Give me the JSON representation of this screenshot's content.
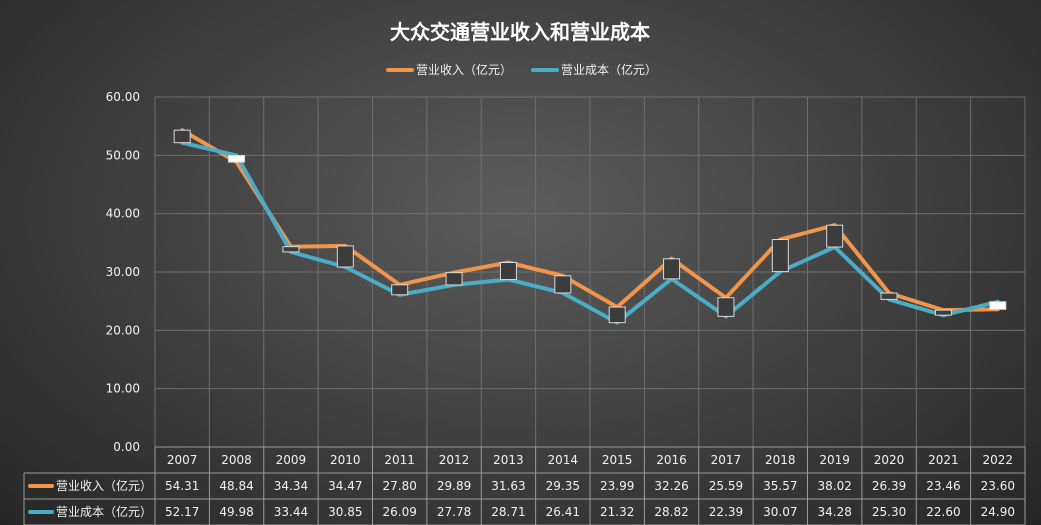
{
  "chart_data": {
    "type": "line",
    "title": "大众交通营业收入和营业成本",
    "categories": [
      "2007",
      "2008",
      "2009",
      "2010",
      "2011",
      "2012",
      "2013",
      "2014",
      "2015",
      "2016",
      "2017",
      "2018",
      "2019",
      "2020",
      "2021",
      "2022"
    ],
    "series": [
      {
        "name": "营业收入（亿元）",
        "color": "#f0954a",
        "values": [
          54.31,
          48.84,
          34.34,
          34.47,
          27.8,
          29.89,
          31.63,
          29.35,
          23.99,
          32.26,
          25.59,
          35.57,
          38.02,
          26.39,
          23.46,
          23.6
        ],
        "labels": [
          "54.31",
          "48.84",
          "34.34",
          "34.47",
          "27.80",
          "29.89",
          "31.63",
          "29.35",
          "23.99",
          "32.26",
          "25.59",
          "35.57",
          "38.02",
          "26.39",
          "23.46",
          "23.60"
        ]
      },
      {
        "name": "营业成本（亿元）",
        "color": "#4bacc6",
        "values": [
          52.17,
          49.98,
          33.44,
          30.85,
          26.09,
          27.78,
          28.71,
          26.41,
          21.32,
          28.82,
          22.39,
          30.07,
          34.28,
          25.3,
          22.6,
          24.9
        ],
        "labels": [
          "52.17",
          "49.98",
          "33.44",
          "30.85",
          "26.09",
          "27.78",
          "28.71",
          "26.41",
          "21.32",
          "28.82",
          "22.39",
          "30.07",
          "34.28",
          "25.30",
          "22.60",
          "24.90"
        ]
      }
    ],
    "ylim": [
      0,
      60
    ],
    "yticks": [
      "0.00",
      "10.00",
      "20.00",
      "30.00",
      "40.00",
      "50.00",
      "60.00"
    ],
    "grid": true,
    "legend": "top",
    "data_table": true
  }
}
